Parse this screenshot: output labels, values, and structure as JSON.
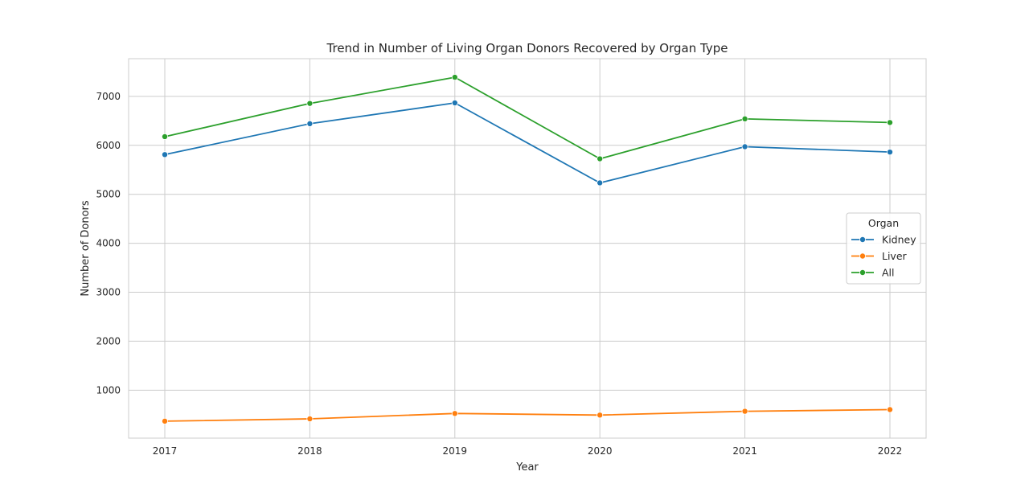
{
  "chart_data": {
    "type": "line",
    "title": "Trend in Number of Living Organ Donors Recovered by Organ Type",
    "xlabel": "Year",
    "ylabel": "Number of Donors",
    "categories": [
      "2017",
      "2018",
      "2019",
      "2020",
      "2021",
      "2022"
    ],
    "y_ticks": [
      1000,
      2000,
      3000,
      4000,
      5000,
      6000,
      7000
    ],
    "ylim": [
      20,
      7770
    ],
    "grid": true,
    "legend": {
      "title": "Organ",
      "placement": "center-right"
    },
    "series": [
      {
        "name": "Kidney",
        "color": "#1f77b4",
        "values": [
          5811,
          6442,
          6867,
          5234,
          5972,
          5863
        ]
      },
      {
        "name": "Liver",
        "color": "#ff7f0e",
        "values": [
          367,
          414,
          524,
          491,
          569,
          603
        ]
      },
      {
        "name": "All",
        "color": "#2ca02c",
        "values": [
          6178,
          6856,
          7391,
          5725,
          6541,
          6466
        ]
      }
    ]
  }
}
